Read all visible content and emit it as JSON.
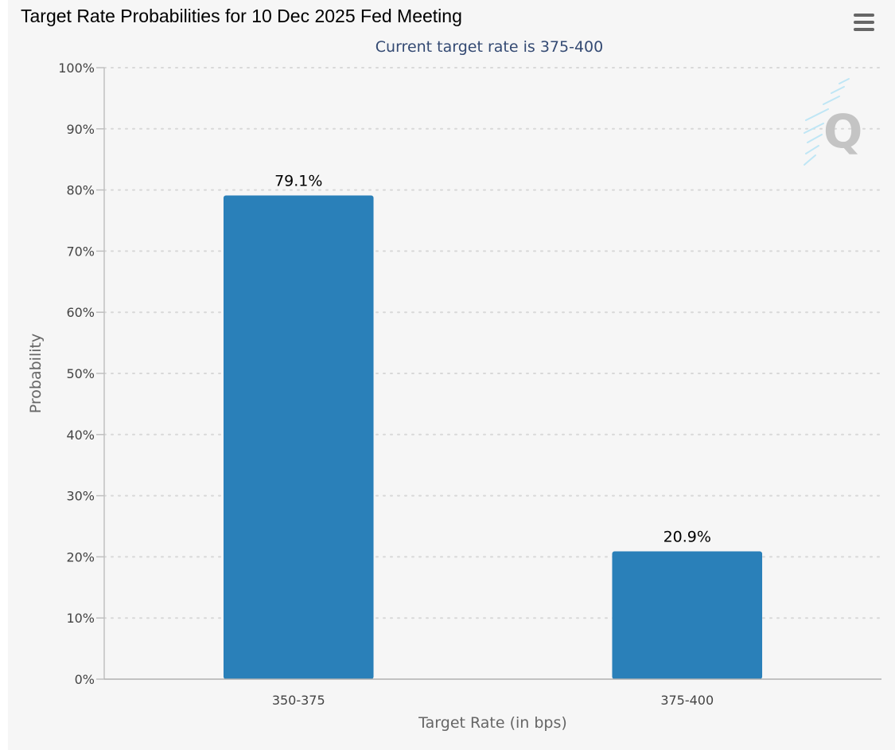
{
  "chart_data": {
    "type": "bar",
    "title": "Target Rate Probabilities for 10 Dec 2025 Fed Meeting",
    "subtitle": "Current target rate is 375-400",
    "xlabel": "Target Rate (in bps)",
    "ylabel": "Probability",
    "categories": [
      "350-375",
      "375-400"
    ],
    "values": [
      79.1,
      20.9
    ],
    "data_labels": [
      "79.1%",
      "20.9%"
    ],
    "ylim": [
      0,
      100
    ],
    "yticks": [
      0,
      10,
      20,
      30,
      40,
      50,
      60,
      70,
      80,
      90,
      100
    ],
    "ytick_suffix": "%",
    "grid": true,
    "legend": "none",
    "bar_color": "#2a80b9"
  },
  "colors": {
    "background": "#f6f6f6",
    "subtitle": "#344a73",
    "gridline": "#d8d8d8"
  },
  "icons": {
    "menu": "hamburger-menu-icon",
    "watermark": "q-logo-watermark"
  }
}
